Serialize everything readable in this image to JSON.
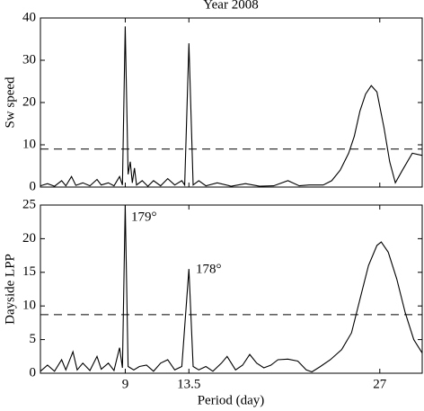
{
  "chart_data": [
    {
      "type": "line",
      "title": "Year 2008",
      "ylabel": "Sw speed",
      "color": "#000000",
      "xlim": [
        3,
        30
      ],
      "ylim": [
        0,
        40
      ],
      "yticks": [
        0,
        10,
        20,
        30,
        40
      ],
      "threshold": 9,
      "x": [
        3,
        3.5,
        4,
        4.5,
        4.8,
        5.2,
        5.5,
        6,
        6.5,
        7,
        7.3,
        7.8,
        8.2,
        8.6,
        8.8,
        9,
        9.2,
        9.35,
        9.5,
        9.65,
        9.8,
        10.2,
        10.6,
        11,
        11.5,
        12,
        12.5,
        13,
        13.2,
        13.5,
        13.8,
        14.2,
        14.7,
        15.5,
        16.5,
        17.5,
        18.5,
        19.5,
        20.5,
        21.3,
        22,
        23,
        23.6,
        24.2,
        24.8,
        25.2,
        25.6,
        26,
        26.4,
        26.8,
        27.3,
        27.7,
        28.1,
        28.6,
        29.3,
        30
      ],
      "values": [
        0.3,
        0.8,
        0.2,
        1.5,
        0.3,
        2.5,
        0.4,
        1,
        0.3,
        1.8,
        0.5,
        1,
        0.3,
        2.5,
        0.5,
        38,
        3,
        6,
        1,
        4.5,
        0.5,
        1.5,
        0.2,
        1.5,
        0.3,
        2,
        0.5,
        1.5,
        0.5,
        34,
        0.5,
        1.5,
        0.3,
        1,
        0.2,
        0.8,
        0.2,
        0.3,
        1.5,
        0.3,
        0.5,
        0.5,
        1.5,
        4,
        8,
        12,
        18,
        22,
        24,
        22.5,
        14,
        6,
        1,
        4,
        8,
        7.5
      ]
    },
    {
      "type": "line",
      "ylabel": "Dayside LPP",
      "xlabel": "Period (day)",
      "color": "#000000",
      "xlim": [
        3,
        30
      ],
      "ylim": [
        0,
        25
      ],
      "yticks": [
        0,
        5,
        10,
        15,
        20,
        25
      ],
      "xticks": [
        9,
        13.5,
        27
      ],
      "threshold": 8.7,
      "annotations": [
        "179°",
        "178°"
      ],
      "x": [
        3,
        3.5,
        4,
        4.5,
        4.8,
        5.3,
        5.6,
        6,
        6.5,
        7,
        7.3,
        7.8,
        8.2,
        8.6,
        8.8,
        9,
        9.2,
        9.6,
        10,
        10.5,
        11,
        11.5,
        12,
        12.5,
        13,
        13.5,
        13.8,
        14.2,
        14.7,
        15.2,
        15.8,
        16.2,
        16.8,
        17.3,
        17.8,
        18.3,
        18.8,
        19.3,
        19.8,
        20.5,
        21.2,
        21.8,
        22.2,
        22.8,
        23.5,
        24.3,
        25,
        25.6,
        26.2,
        26.8,
        27.1,
        27.6,
        28.2,
        28.8,
        29.4,
        30
      ],
      "values": [
        0.3,
        1.2,
        0.3,
        2,
        0.5,
        3.2,
        0.5,
        1.5,
        0.4,
        2.5,
        0.6,
        1.5,
        0.4,
        3.8,
        0.8,
        25,
        1,
        0.5,
        1,
        1.2,
        0.3,
        1.5,
        2,
        0.5,
        1,
        15.5,
        1,
        0.5,
        1,
        0.3,
        1.5,
        2.5,
        0.5,
        1.2,
        2.8,
        1.5,
        0.8,
        1.2,
        2,
        2.1,
        1.8,
        0.5,
        0.2,
        1,
        2,
        3.5,
        6,
        11,
        16,
        19,
        19.5,
        18,
        14,
        9,
        5,
        3
      ]
    }
  ]
}
